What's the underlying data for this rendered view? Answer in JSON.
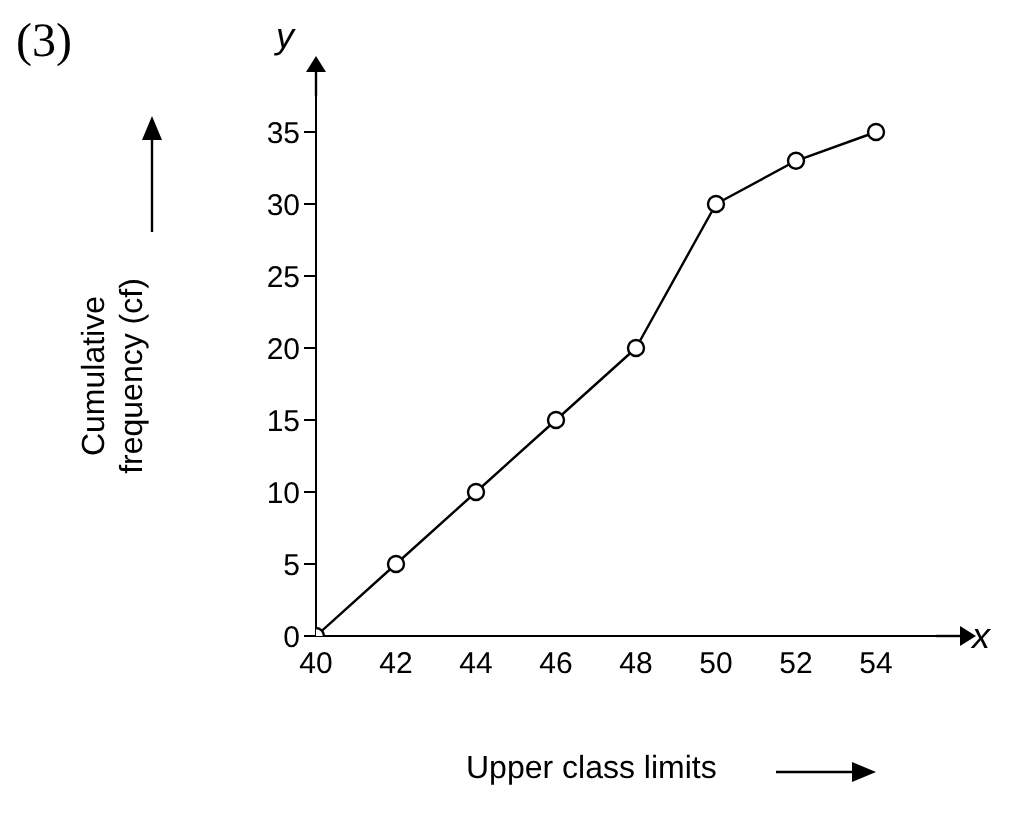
{
  "chart_data": {
    "type": "line",
    "xlabel": "Upper class limits",
    "ylabel": "Cumulative frequency (cf)",
    "annotations": [
      "(3)",
      "x",
      "y"
    ],
    "x": [
      40,
      42,
      44,
      46,
      48,
      50,
      52,
      54
    ],
    "series": [
      {
        "color": "#000000",
        "values": [
          0,
          5,
          10,
          15,
          20,
          30,
          33,
          35
        ]
      }
    ],
    "xlim": [
      40,
      55.5
    ],
    "xticks": [
      40,
      42,
      44,
      46,
      48,
      50,
      52,
      54
    ],
    "ylim": [
      0,
      37.5
    ],
    "yticks": [
      0,
      5,
      10,
      15,
      20,
      25,
      30,
      35
    ],
    "grid": false,
    "legend": false,
    "marker": "circle",
    "line_style": "solid"
  }
}
